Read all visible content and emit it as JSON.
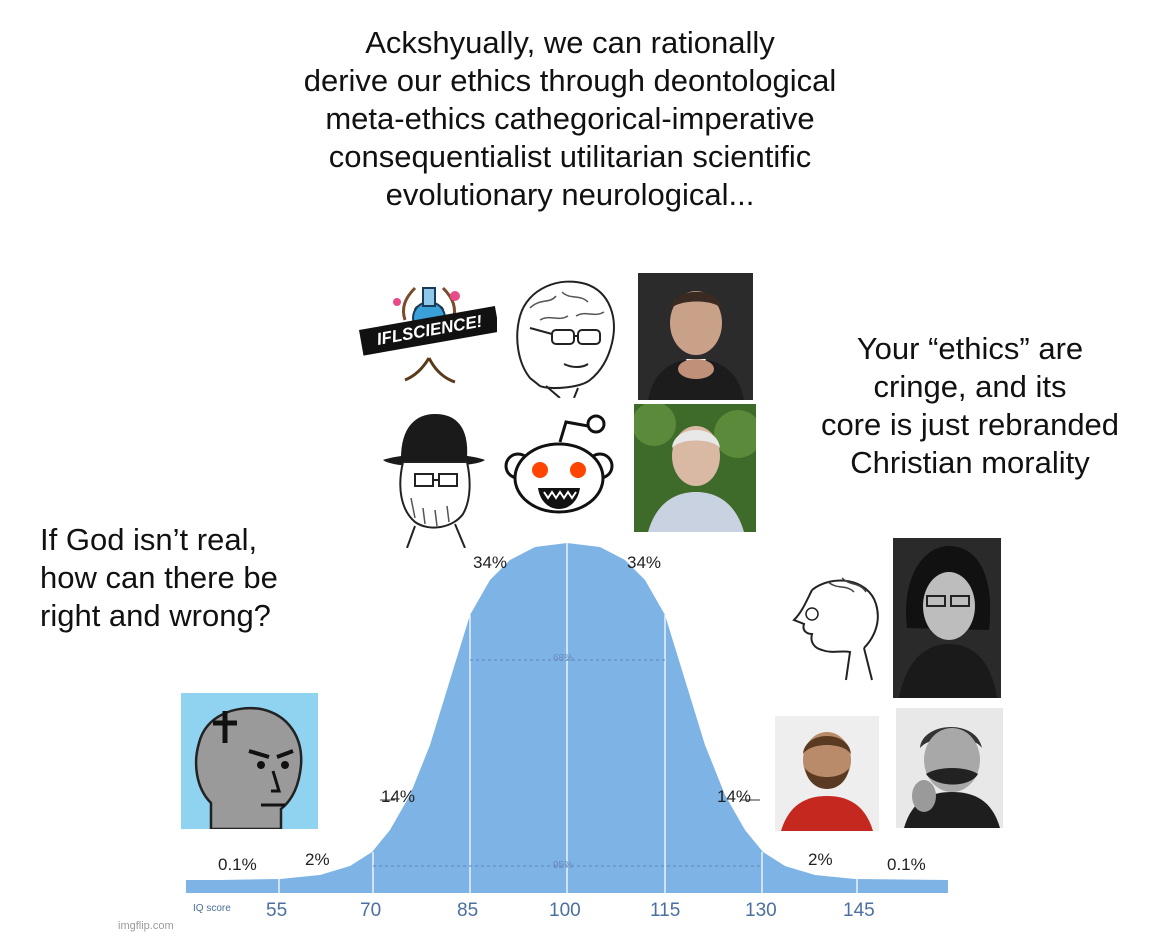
{
  "captions": {
    "middle": [
      "Ackshyually, we can rationally",
      "derive our ethics through deontological",
      "meta-ethics cathegorical-imperative",
      "consequentialist utilitarian scientific",
      "evolutionary neurological..."
    ],
    "left": [
      "If God isn’t real,",
      "how can there be",
      "right and wrong?"
    ],
    "right": [
      "Your “ethics” are",
      "cringe, and  its",
      "core is just rebranded",
      "Christian morality"
    ]
  },
  "bell_curve": {
    "percent_labels": {
      "left_tail": "0.1%",
      "left_2": "2%",
      "left_14": "14%",
      "left_34": "34%",
      "right_34": "34%",
      "right_14": "14%",
      "right_2": "2%",
      "right_tail": "0.1%"
    },
    "inner_labels": {
      "sixty_eight": "68%",
      "ninety_five": "95%"
    },
    "axis_title": "IQ score",
    "ticks": [
      "55",
      "70",
      "85",
      "100",
      "115",
      "130",
      "145"
    ],
    "colors": {
      "fill": "#7eb3e6",
      "bar": "#7eb3e6",
      "tick_text": "#4a6fa0"
    }
  },
  "logos": {
    "iflscience": "IFLSCIENCE!"
  },
  "watermark": "imgflip.com"
}
